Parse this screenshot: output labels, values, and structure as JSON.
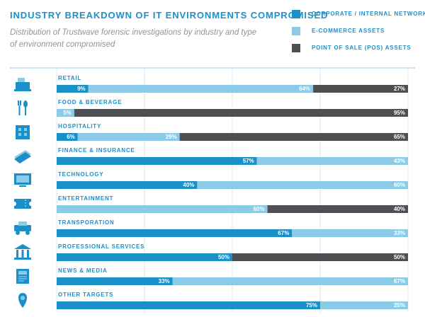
{
  "header": {
    "title": "INDUSTRY BREAKDOWN OF IT ENVIRONMENTS COMPROMISED",
    "subtitle": "Distribution of Trustwave forensic investigations by industry and type of environment compromised"
  },
  "legend": [
    {
      "label": "CORPORATE / INTERNAL NETWORK",
      "color": "#1a8fc8"
    },
    {
      "label": "E-COMMERCE ASSETS",
      "color": "#8ccbe8"
    },
    {
      "label": "POINT OF SALE (POS) ASSETS",
      "color": "#4d4f53"
    }
  ],
  "chart_data": {
    "type": "bar",
    "orientation": "horizontal",
    "stacked": true,
    "unit": "%",
    "xlim": [
      0,
      100
    ],
    "grid": true,
    "legend_position": "top-right",
    "categories": [
      "RETAIL",
      "FOOD & BEVERAGE",
      "HOSPITALITY",
      "FINANCE & INSURANCE",
      "TECHNOLOGY",
      "ENTERTAINMENT",
      "TRANSPORATION",
      "PROFESSIONAL SERVICES",
      "NEWS & MEDIA",
      "OTHER TARGETS"
    ],
    "icons": [
      "cash-register-icon",
      "fork-and-spoon-icon",
      "hotel-building-icon",
      "money-stack-icon",
      "monitor-icon",
      "ticket-icon",
      "vehicle-icon",
      "institution-building-icon",
      "newspaper-icon",
      "location-pin-icon"
    ],
    "series": [
      {
        "name": "CORPORATE / INTERNAL NETWORK",
        "color": "#1a8fc8",
        "values": [
          9,
          0,
          6,
          57,
          40,
          0,
          67,
          50,
          33,
          75
        ]
      },
      {
        "name": "E-COMMERCE ASSETS",
        "color": "#8ccbe8",
        "values": [
          64,
          5,
          29,
          43,
          60,
          60,
          33,
          0,
          67,
          25
        ]
      },
      {
        "name": "POINT OF SALE (POS) ASSETS",
        "color": "#4d4f53",
        "values": [
          27,
          95,
          65,
          0,
          0,
          40,
          0,
          50,
          0,
          0
        ]
      }
    ]
  }
}
